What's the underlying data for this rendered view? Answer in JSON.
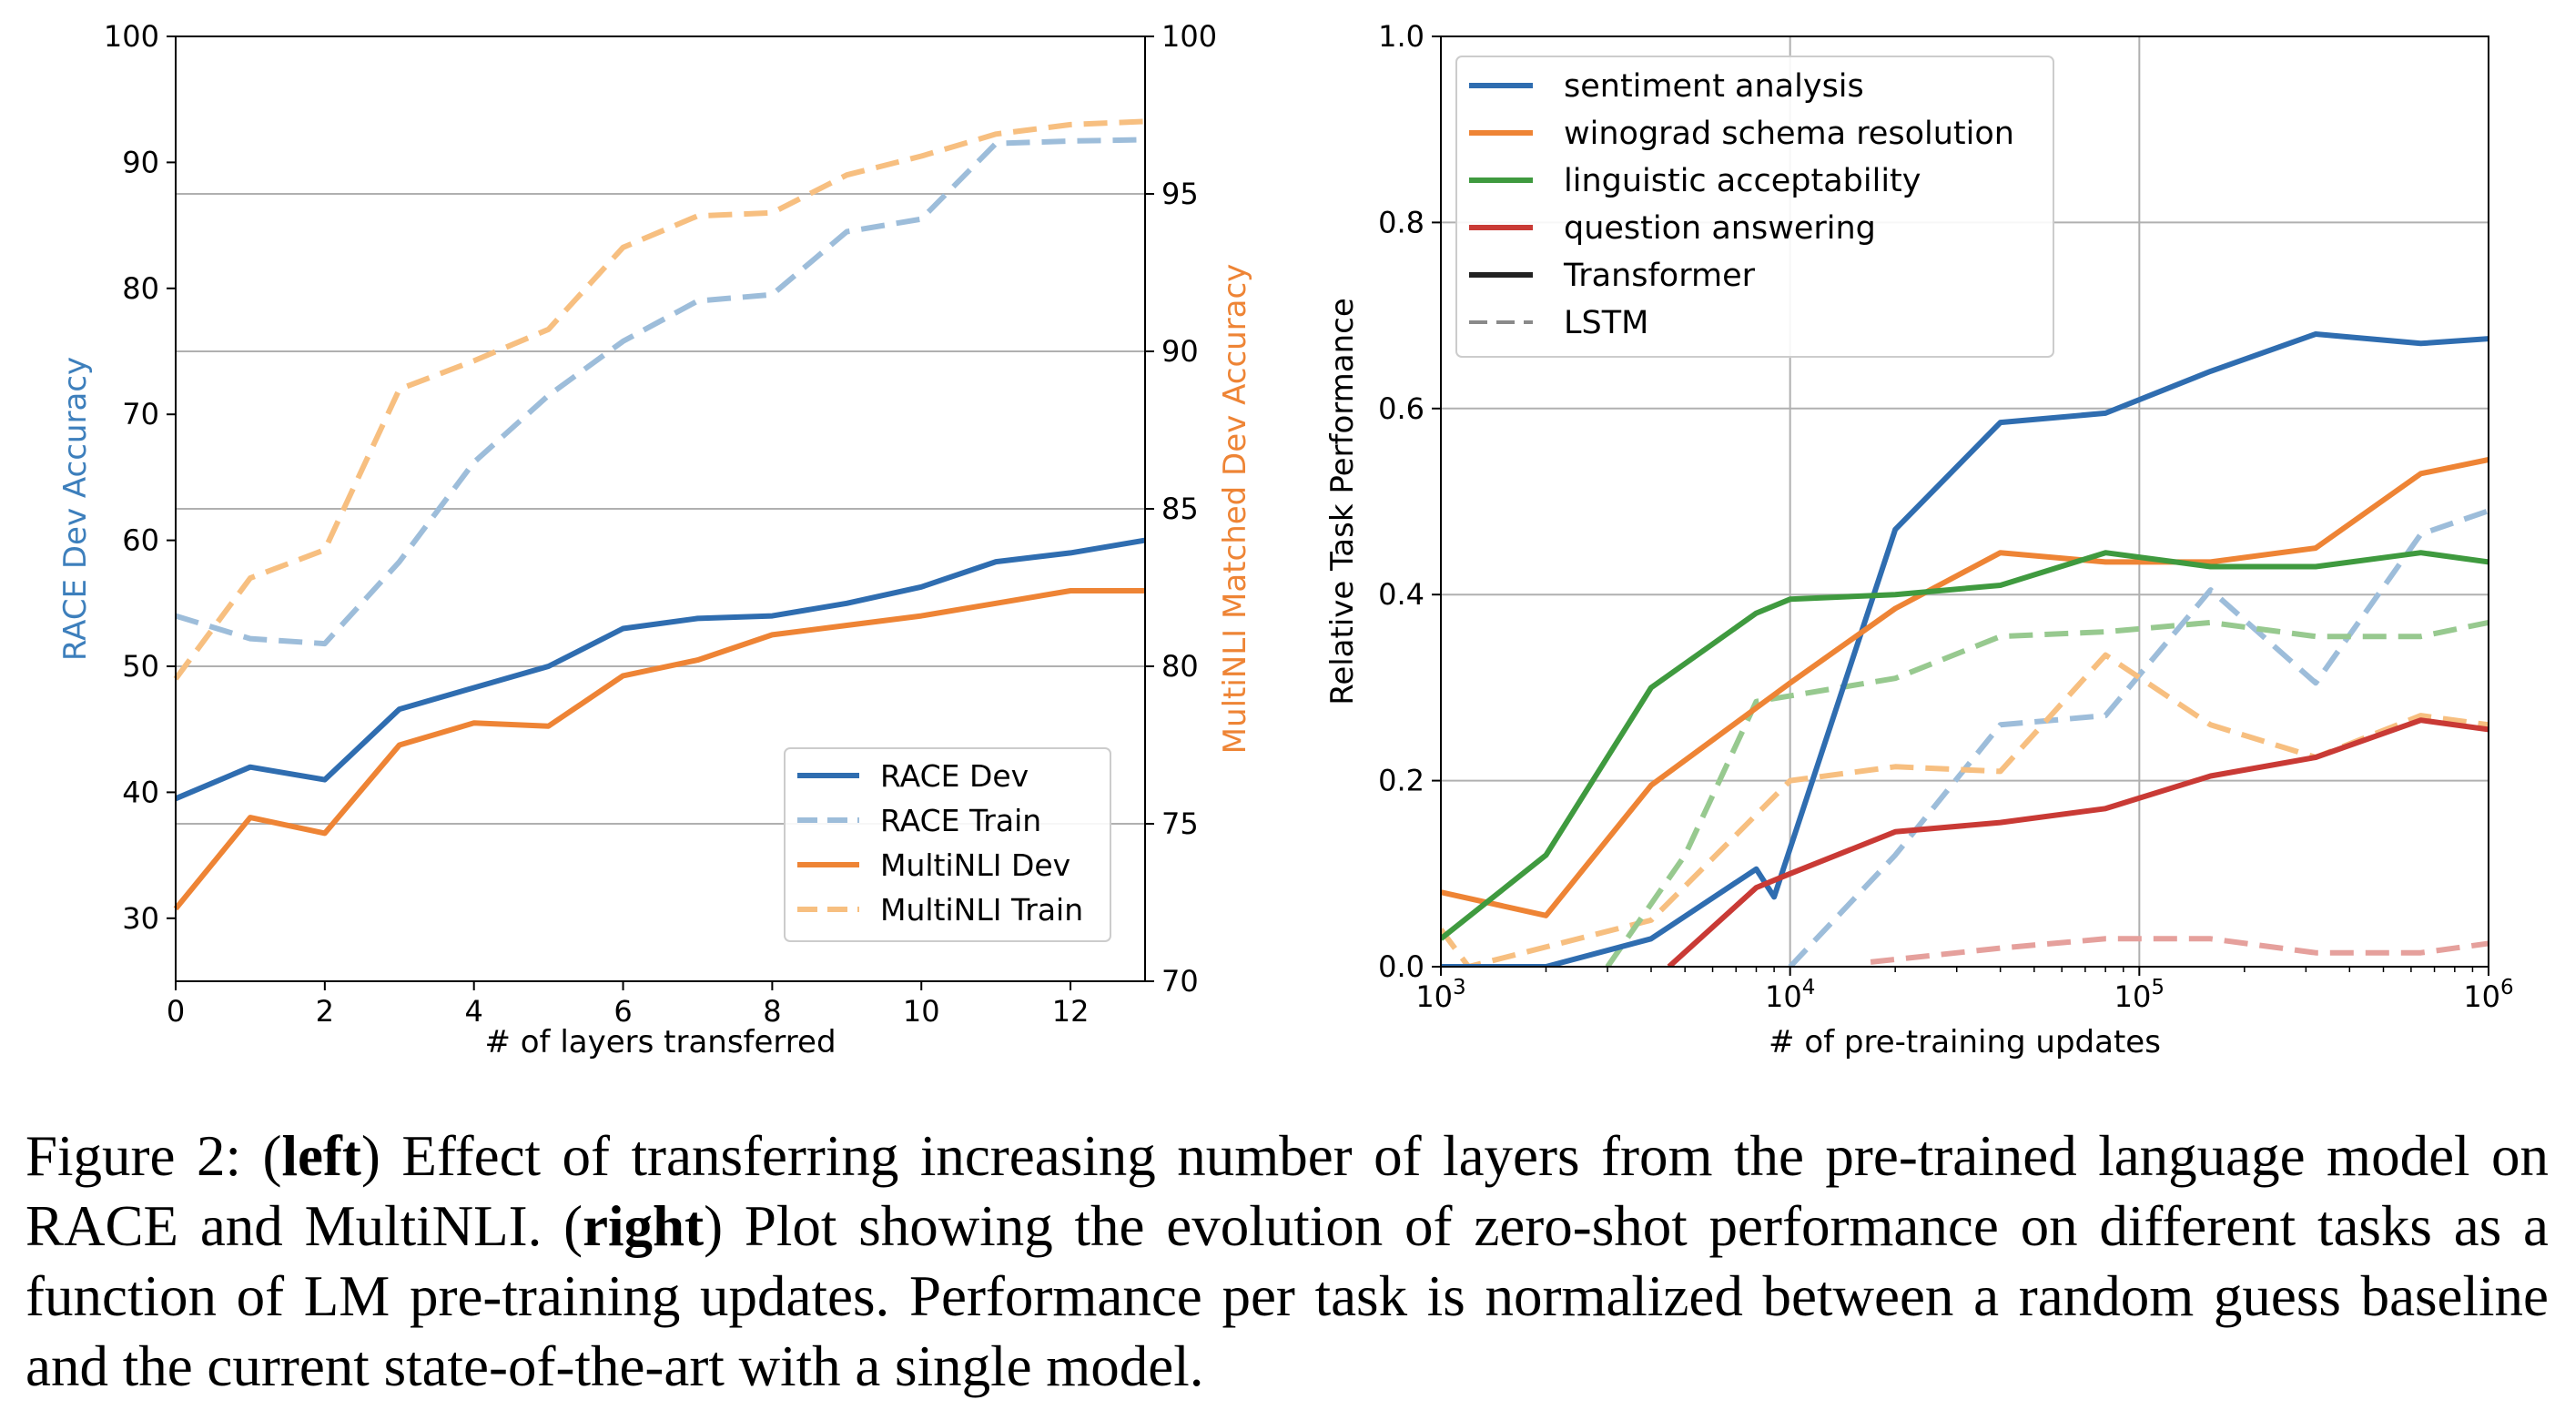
{
  "left_chart_data": {
    "type": "line",
    "xlabel": "# of layers transferred",
    "ylabel_left": "RACE Dev Accuracy",
    "ylabel_right": "MultiNLI Matched Dev Accuracy",
    "xlim": [
      0,
      13
    ],
    "ylim_left": [
      25,
      100
    ],
    "ylim_right": [
      70,
      100
    ],
    "x_ticks": [
      "0",
      "2",
      "4",
      "6",
      "8",
      "10",
      "12"
    ],
    "y_left_ticks": [
      "30",
      "40",
      "50",
      "60",
      "70",
      "80",
      "90",
      "100"
    ],
    "y_right_ticks": [
      "70",
      "75",
      "80",
      "85",
      "90",
      "95",
      "100"
    ],
    "grid": "horizontal",
    "legend_position": "bottom-right",
    "x": [
      0,
      1,
      2,
      3,
      4,
      5,
      6,
      7,
      8,
      9,
      10,
      11,
      12,
      13
    ],
    "series": [
      {
        "name": "RACE Dev",
        "axis": "left",
        "color": "#2f6db0",
        "dashed": false,
        "values": [
          39.5,
          42,
          41,
          46.6,
          48.3,
          50,
          53,
          53.8,
          54,
          55,
          56.3,
          58.3,
          59,
          60
        ]
      },
      {
        "name": "RACE Train",
        "axis": "left",
        "color": "#9dbdda",
        "dashed": true,
        "values": [
          54,
          52.2,
          51.8,
          58.3,
          66.2,
          71.5,
          75.8,
          79,
          79.5,
          84.5,
          85.5,
          91.5,
          91.7,
          91.8
        ]
      },
      {
        "name": "MultiNLI Dev",
        "axis": "right",
        "color": "#ee8435",
        "dashed": false,
        "values": [
          72.3,
          75.2,
          74.7,
          77.5,
          78.2,
          78.1,
          79.7,
          80.2,
          81,
          81.3,
          81.6,
          82,
          82.4,
          82.4
        ]
      },
      {
        "name": "MultiNLI Train",
        "axis": "right",
        "color": "#f7bf80",
        "dashed": true,
        "values": [
          79.6,
          82.8,
          83.7,
          88.8,
          89.7,
          90.7,
          93.3,
          94.3,
          94.4,
          95.6,
          96.2,
          96.9,
          97.2,
          97.3
        ]
      }
    ]
  },
  "chart_data": {
    "type": "line",
    "xlabel": "# of pre-training updates",
    "ylabel": "Relative Task Performance",
    "x_scale": "log",
    "xlim": [
      1000,
      1000000
    ],
    "ylim": [
      0,
      1.0
    ],
    "x_ticks": [
      {
        "base": "10",
        "exp": "3"
      },
      {
        "base": "10",
        "exp": "4"
      },
      {
        "base": "10",
        "exp": "5"
      },
      {
        "base": "10",
        "exp": "6"
      }
    ],
    "y_ticks": [
      "0.0",
      "0.2",
      "0.4",
      "0.6",
      "0.8",
      "1.0"
    ],
    "grid": "both",
    "legend_position": "top-left",
    "legend": [
      {
        "label": "sentiment analysis",
        "color": "#2f6db0",
        "dashed": false
      },
      {
        "label": "winograd schema resolution",
        "color": "#ee8435",
        "dashed": false
      },
      {
        "label": "linguistic acceptability",
        "color": "#3f9a3f",
        "dashed": false
      },
      {
        "label": "question answering",
        "color": "#c93a35",
        "dashed": false
      },
      {
        "label": "Transformer",
        "color": "#222222",
        "dashed": false
      },
      {
        "label": "LSTM",
        "color": "#8a8a8a",
        "dashed": true
      }
    ],
    "series": [
      {
        "task": "sentiment analysis",
        "model": "Transformer",
        "color": "#2f6db0",
        "dashed": false,
        "points": [
          [
            1000,
            0
          ],
          [
            2000,
            0
          ],
          [
            4000,
            0.03
          ],
          [
            8000,
            0.105
          ],
          [
            9000,
            0.075
          ],
          [
            20000,
            0.47
          ],
          [
            40000,
            0.585
          ],
          [
            80000,
            0.595
          ],
          [
            160000,
            0.64
          ],
          [
            320000,
            0.68
          ],
          [
            640000,
            0.67
          ],
          [
            1000000,
            0.675
          ]
        ]
      },
      {
        "task": "winograd schema resolution",
        "model": "Transformer",
        "color": "#ee8435",
        "dashed": false,
        "points": [
          [
            1000,
            0.08
          ],
          [
            2000,
            0.055
          ],
          [
            4000,
            0.195
          ],
          [
            10000,
            0.305
          ],
          [
            20000,
            0.385
          ],
          [
            40000,
            0.445
          ],
          [
            80000,
            0.435
          ],
          [
            160000,
            0.435
          ],
          [
            320000,
            0.45
          ],
          [
            640000,
            0.53
          ],
          [
            1000000,
            0.545
          ]
        ]
      },
      {
        "task": "linguistic acceptability",
        "model": "Transformer",
        "color": "#3f9a3f",
        "dashed": false,
        "points": [
          [
            1000,
            0.03
          ],
          [
            2000,
            0.12
          ],
          [
            4000,
            0.3
          ],
          [
            8000,
            0.38
          ],
          [
            10000,
            0.395
          ],
          [
            20000,
            0.4
          ],
          [
            40000,
            0.41
          ],
          [
            80000,
            0.445
          ],
          [
            160000,
            0.43
          ],
          [
            320000,
            0.43
          ],
          [
            640000,
            0.445
          ],
          [
            1000000,
            0.435
          ]
        ]
      },
      {
        "task": "question answering",
        "model": "Transformer",
        "color": "#c93a35",
        "dashed": false,
        "points": [
          [
            4500,
            0
          ],
          [
            8000,
            0.085
          ],
          [
            10000,
            0.1
          ],
          [
            20000,
            0.145
          ],
          [
            40000,
            0.155
          ],
          [
            80000,
            0.17
          ],
          [
            160000,
            0.205
          ],
          [
            320000,
            0.225
          ],
          [
            640000,
            0.265
          ],
          [
            1000000,
            0.255
          ]
        ]
      },
      {
        "task": "sentiment analysis",
        "model": "LSTM",
        "color": "#9dbdda",
        "dashed": true,
        "points": [
          [
            10000,
            0
          ],
          [
            20000,
            0.12
          ],
          [
            40000,
            0.26
          ],
          [
            80000,
            0.27
          ],
          [
            160000,
            0.405
          ],
          [
            320000,
            0.305
          ],
          [
            640000,
            0.465
          ],
          [
            1000000,
            0.49
          ]
        ]
      },
      {
        "task": "winograd schema resolution",
        "model": "LSTM",
        "color": "#f7bf80",
        "dashed": true,
        "points": [
          [
            1000,
            0.04
          ],
          [
            1200,
            0
          ],
          [
            4000,
            0.05
          ],
          [
            10000,
            0.2
          ],
          [
            20000,
            0.215
          ],
          [
            40000,
            0.21
          ],
          [
            80000,
            0.335
          ],
          [
            160000,
            0.26
          ],
          [
            320000,
            0.225
          ],
          [
            640000,
            0.27
          ],
          [
            1000000,
            0.26
          ]
        ]
      },
      {
        "task": "linguistic acceptability",
        "model": "LSTM",
        "color": "#97c98f",
        "dashed": true,
        "points": [
          [
            3000,
            0
          ],
          [
            5000,
            0.12
          ],
          [
            8000,
            0.285
          ],
          [
            20000,
            0.31
          ],
          [
            40000,
            0.355
          ],
          [
            80000,
            0.36
          ],
          [
            160000,
            0.37
          ],
          [
            320000,
            0.355
          ],
          [
            640000,
            0.355
          ],
          [
            1000000,
            0.37
          ]
        ]
      },
      {
        "task": "question answering",
        "model": "LSTM",
        "color": "#e5a09c",
        "dashed": true,
        "points": [
          [
            17000,
            0.005
          ],
          [
            40000,
            0.02
          ],
          [
            80000,
            0.03
          ],
          [
            160000,
            0.03
          ],
          [
            320000,
            0.015
          ],
          [
            640000,
            0.015
          ],
          [
            1000000,
            0.025
          ]
        ]
      }
    ]
  },
  "caption": {
    "prefix": "Figure 2: (",
    "left_bold": "left",
    "middle": ") Effect of transferring increasing number of layers from the pre-trained language model on RACE and MultiNLI. (",
    "right_bold": "right",
    "suffix": ") Plot showing the evolution of zero-shot performance on different tasks as a function of LM pre-training updates. Performance per task is normalized between a random guess baseline and the current state-of-the-art with a single model."
  }
}
